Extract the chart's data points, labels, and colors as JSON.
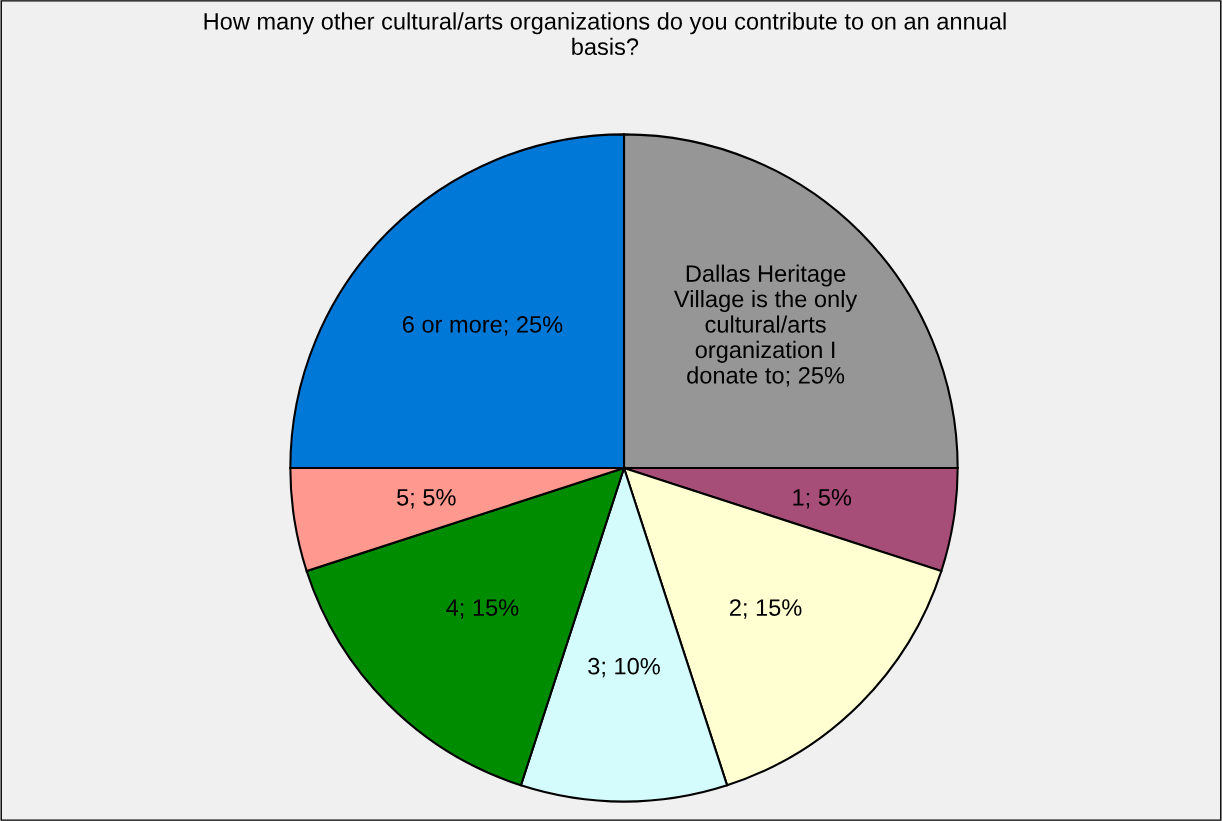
{
  "chart_data": {
    "type": "pie",
    "title": "How many other cultural/arts organizations do you contribute to on an annual basis?",
    "categories": [
      "Dallas Heritage Village is the only cultural/arts organization I donate to",
      "1",
      "2",
      "3",
      "4",
      "5",
      "6 or more"
    ],
    "values": [
      25,
      5,
      15,
      10,
      15,
      5,
      25
    ],
    "value_labels": [
      "25%",
      "5%",
      "15%",
      "10%",
      "15%",
      "5%",
      "25%"
    ],
    "colors": [
      "#969696",
      "#a64d78",
      "#ffffd2",
      "#d4fcfc",
      "#008c00",
      "#ff9990",
      "#0078d7"
    ]
  }
}
